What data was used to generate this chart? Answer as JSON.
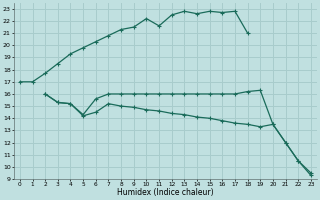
{
  "xlabel": "Humidex (Indice chaleur)",
  "bg_color": "#c0e0e0",
  "grid_color": "#a8cccc",
  "line_color": "#1a6b5a",
  "xlim": [
    -0.5,
    23.5
  ],
  "ylim": [
    9,
    23.5
  ],
  "x_ticks": [
    0,
    1,
    2,
    3,
    4,
    5,
    6,
    7,
    8,
    9,
    10,
    11,
    12,
    13,
    14,
    15,
    16,
    17,
    18,
    19,
    20,
    21,
    22,
    23
  ],
  "y_ticks": [
    9,
    10,
    11,
    12,
    13,
    14,
    15,
    16,
    17,
    18,
    19,
    20,
    21,
    22,
    23
  ],
  "series1_x": [
    0,
    1,
    2,
    3,
    4,
    5,
    6,
    7,
    8,
    9,
    10,
    11,
    12,
    13,
    14,
    15,
    16,
    17,
    18
  ],
  "series1_y": [
    17.0,
    17.0,
    17.7,
    18.5,
    19.3,
    19.8,
    20.3,
    20.8,
    21.3,
    21.5,
    22.2,
    21.6,
    22.5,
    22.8,
    22.6,
    22.8,
    22.7,
    22.8,
    21.0
  ],
  "series2_x": [
    2,
    3,
    4,
    5,
    6,
    7,
    8,
    9,
    10,
    11,
    12,
    13,
    14,
    15,
    16,
    17,
    18,
    19,
    20,
    21,
    22,
    23
  ],
  "series2_y": [
    16.0,
    15.3,
    15.2,
    14.3,
    15.6,
    16.0,
    16.0,
    16.0,
    16.0,
    16.0,
    16.0,
    16.0,
    16.0,
    16.0,
    16.0,
    16.0,
    16.2,
    16.3,
    13.5,
    12.0,
    10.5,
    9.5
  ],
  "series3_x": [
    2,
    3,
    4,
    5,
    6,
    7,
    8,
    9,
    10,
    11,
    12,
    13,
    14,
    15,
    16,
    17,
    18,
    19,
    20,
    21,
    22,
    23
  ],
  "series3_y": [
    16.0,
    15.3,
    15.2,
    14.2,
    14.5,
    15.2,
    15.0,
    14.9,
    14.7,
    14.6,
    14.4,
    14.3,
    14.1,
    14.0,
    13.8,
    13.6,
    13.5,
    13.3,
    13.5,
    12.0,
    10.5,
    9.3
  ]
}
